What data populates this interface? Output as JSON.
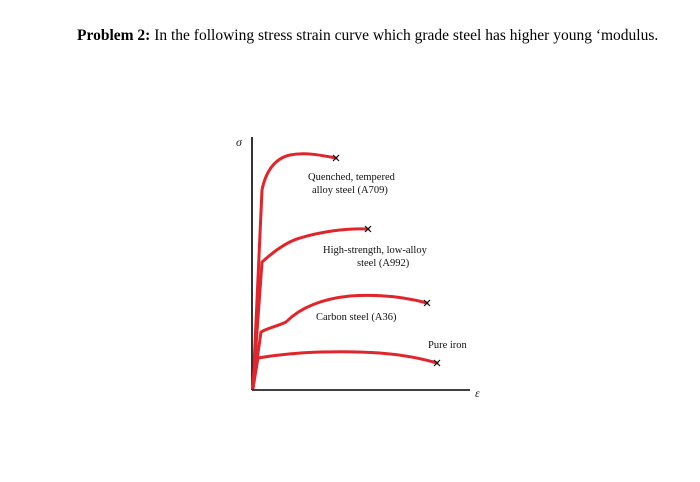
{
  "problem": {
    "label": "Problem 2:",
    "text": " In the following stress strain curve which grade steel has higher young ‘modulus."
  },
  "figure": {
    "y_axis_symbol": "σ",
    "x_axis_symbol": "ε",
    "curve_color": "#e0262b",
    "axis_color": "#000000",
    "labels": {
      "a709_line1": "Quenched, tempered",
      "a709_line2": "alloy steel (A709)",
      "a992_line1": "High-strength, low-alloy",
      "a992_line2": "steel (A992)",
      "a36": "Carbon steel (A36)",
      "pure_iron": "Pure iron"
    }
  }
}
